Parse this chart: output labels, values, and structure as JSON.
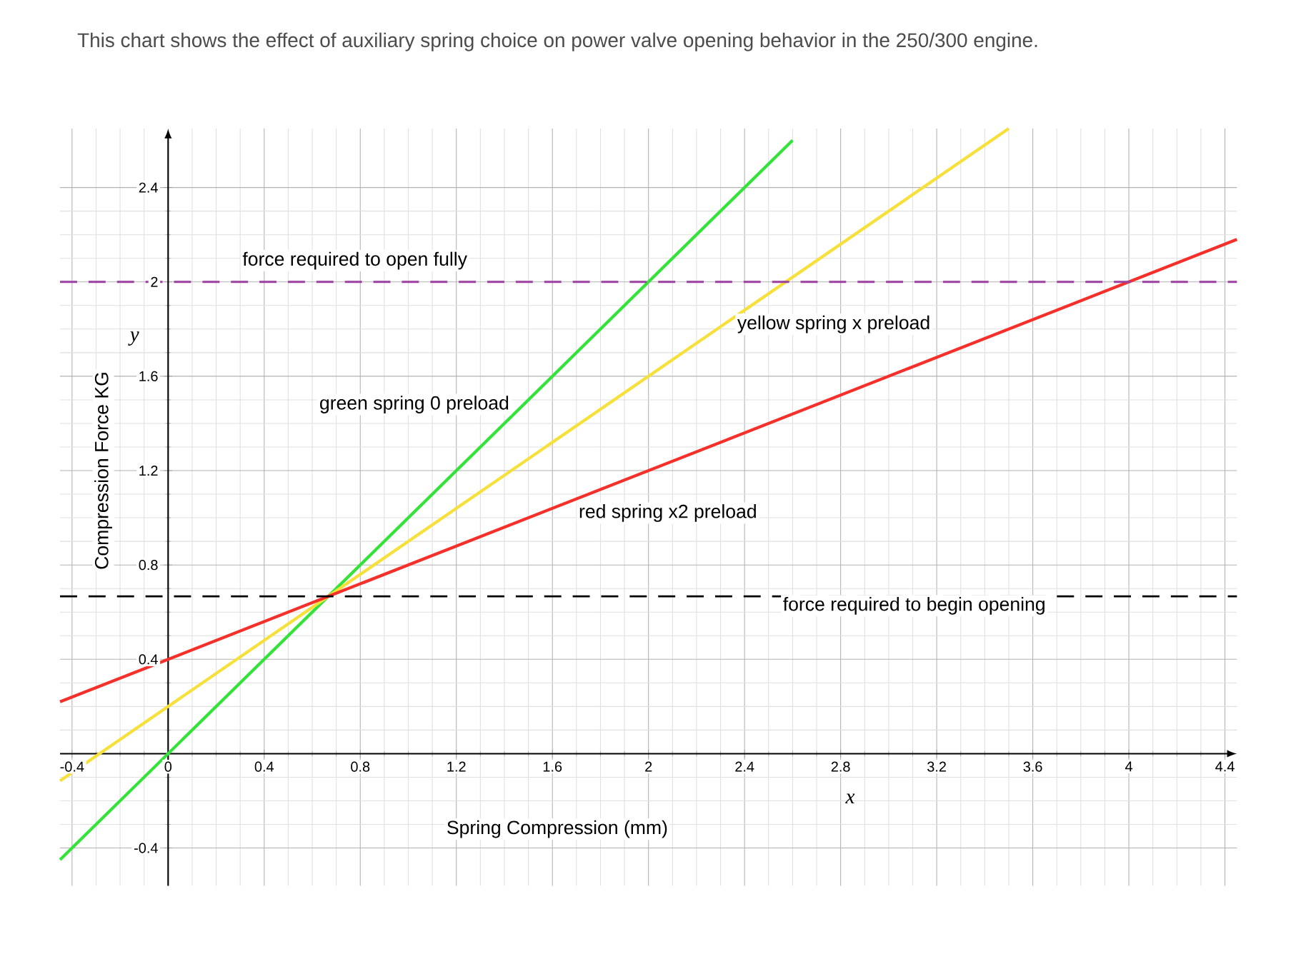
{
  "chart_data": {
    "type": "line",
    "title": "This chart shows the effect of auxiliary spring choice on power valve opening behavior in the 250/300 engine.",
    "xlabel": "Spring Compression (mm)",
    "ylabel": "Compression Force KG",
    "annotations": [
      "x",
      "y"
    ],
    "xlim": [
      -0.45,
      4.45
    ],
    "ylim": [
      -0.56,
      2.65
    ],
    "xticks": [
      -0.4,
      0,
      0.4,
      0.8,
      1.2,
      1.6,
      2,
      2.4,
      2.8,
      3.2,
      3.6,
      4,
      4.4
    ],
    "yticks": [
      -0.4,
      {
        "value": 0,
        "label": null
      },
      0.4,
      0.8,
      1.2,
      1.6,
      2,
      2.4
    ],
    "grid": true,
    "series": [
      {
        "name": "green spring 0 preload",
        "color": "#33e33a",
        "x": [
          -0.45,
          2.6
        ],
        "values": [
          -0.45,
          2.6
        ]
      },
      {
        "name": "yellow spring x preload",
        "color": "#f7e03a",
        "x": [
          -0.45,
          3.5
        ],
        "values": [
          -0.115,
          2.65
        ]
      },
      {
        "name": "red spring x2 preload",
        "color": "#f5302a",
        "x": [
          -0.45,
          4.45
        ],
        "values": [
          0.22,
          2.18
        ]
      }
    ],
    "ref_lines": [
      {
        "axis": "y",
        "value": 2,
        "label": "force required to open fully",
        "color": "#9b3fa0",
        "line_style": "dashed"
      },
      {
        "axis": "y",
        "value": 0.667,
        "label": "force required to begin opening",
        "color": "#000000",
        "line_style": "dashed"
      }
    ]
  }
}
